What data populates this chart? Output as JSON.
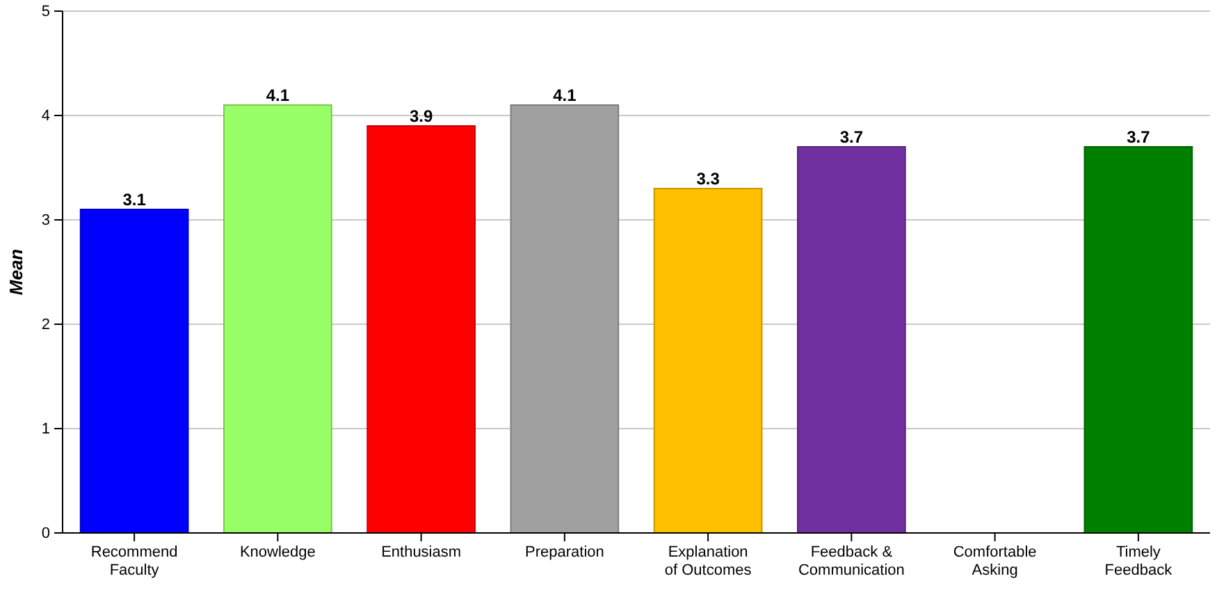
{
  "chart_data": {
    "type": "bar",
    "ylabel": "Mean",
    "categories": [
      "Recommend Faculty",
      "Knowledge",
      "Enthusiasm",
      "Preparation",
      "Explanation of Outcomes",
      "Feedback & Communication",
      "Comfortable Asking",
      "Timely Feedback"
    ],
    "values": [
      3.1,
      4.1,
      3.9,
      4.1,
      3.3,
      3.7,
      null,
      3.7
    ],
    "colors": [
      "#0000ff",
      "#99ff66",
      "#ff0000",
      "#a0a0a0",
      "#ffc000",
      "#7030a0",
      null,
      "#008000"
    ],
    "ylim": [
      0,
      5
    ],
    "yticks": [
      0,
      1,
      2,
      3,
      4,
      5
    ],
    "grid": "y",
    "data_labels": true
  }
}
